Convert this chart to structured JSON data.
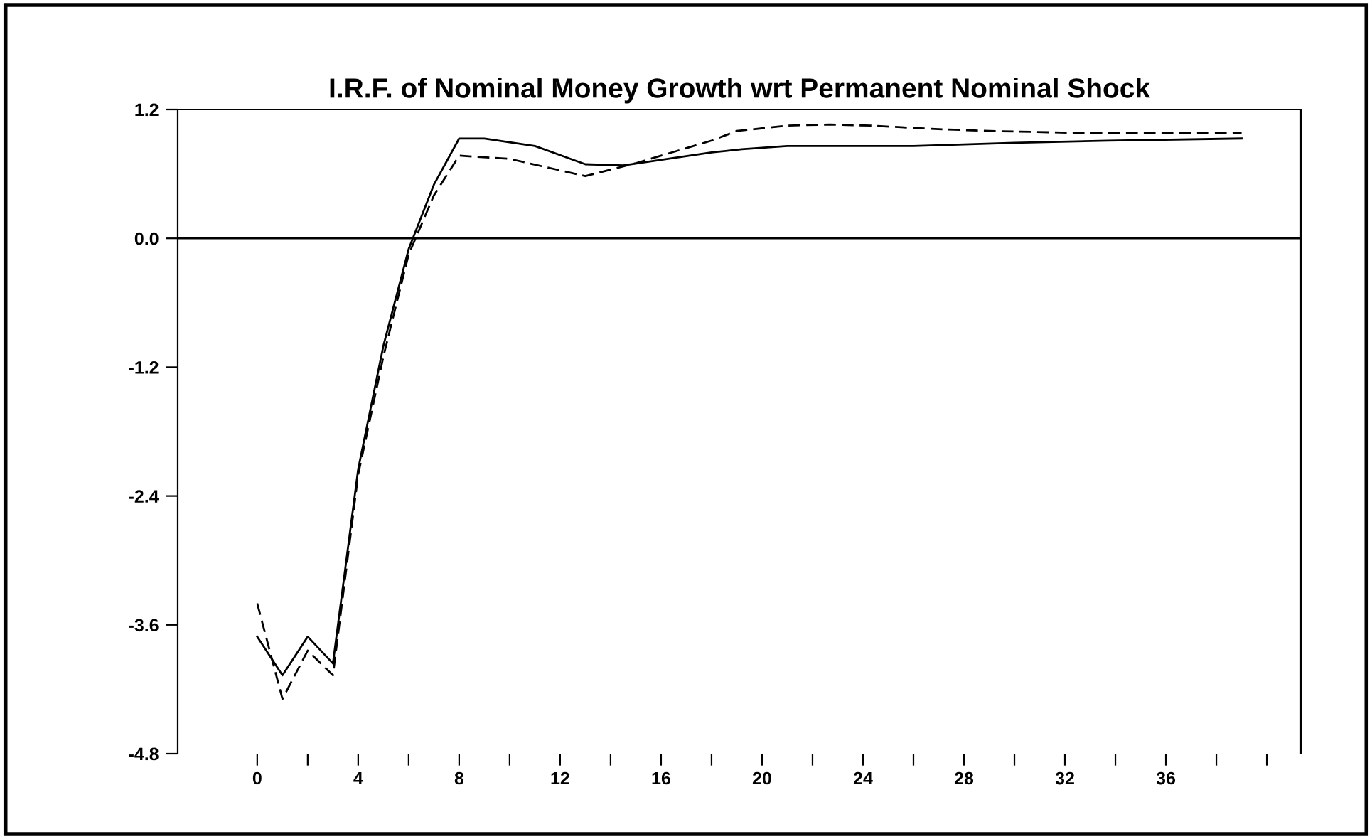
{
  "chart_data": {
    "type": "line",
    "title": "I.R.F. of Nominal Money Growth wrt Permanent Nominal Shock",
    "series": [
      {
        "color": "#000000",
        "line_style": "solid",
        "x": [
          0,
          1,
          2,
          3,
          4,
          5,
          6,
          7,
          8,
          9,
          11,
          13,
          14.5,
          18,
          19.2,
          21,
          26,
          30,
          33.7,
          39
        ],
        "values": [
          -3.71,
          -4.07,
          -3.71,
          -3.96,
          -2.15,
          -1.0,
          -0.1,
          0.5,
          0.93,
          0.93,
          0.86,
          0.69,
          0.68,
          0.8,
          0.83,
          0.86,
          0.86,
          0.89,
          0.91,
          0.93
        ]
      },
      {
        "color": "#000000",
        "line_style": "dashed",
        "x": [
          0,
          1,
          2,
          3,
          4,
          5,
          6,
          7,
          8,
          10,
          13,
          15,
          18,
          19,
          21,
          22.7,
          24.3,
          26.7,
          29,
          33,
          39
        ],
        "values": [
          -3.4,
          -4.29,
          -3.84,
          -4.07,
          -2.2,
          -1.1,
          -0.15,
          0.4,
          0.77,
          0.74,
          0.58,
          0.7,
          0.91,
          1.0,
          1.05,
          1.06,
          1.05,
          1.02,
          1.0,
          0.98,
          0.98
        ]
      }
    ],
    "xlim": [
      -3.15,
      41.35
    ],
    "xticks": [
      0,
      {
        "value": 2,
        "label": null
      },
      4,
      {
        "value": 6,
        "label": null
      },
      8,
      {
        "value": 10,
        "label": null
      },
      12,
      {
        "value": 14,
        "label": null
      },
      16,
      {
        "value": 18,
        "label": null
      },
      20,
      {
        "value": 22,
        "label": null
      },
      24,
      {
        "value": 26,
        "label": null
      },
      28,
      {
        "value": 30,
        "label": null
      },
      32,
      {
        "value": 34,
        "label": null
      },
      36,
      {
        "value": 38,
        "label": null
      },
      {
        "value": 40,
        "label": null
      }
    ],
    "ylim": [
      -4.8,
      1.2
    ],
    "yticks": [
      -4.8,
      -3.6,
      -2.4,
      -1.2,
      {
        "value": 0,
        "label": "0.0"
      },
      1.2
    ],
    "ref_lines": [
      {
        "axis": "y",
        "value": 0,
        "color": "#000000",
        "line_style": "solid"
      }
    ],
    "grid": false,
    "legend": false,
    "marker": "none"
  }
}
